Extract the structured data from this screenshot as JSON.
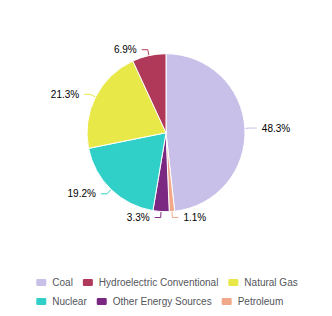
{
  "chart_data": {
    "type": "pie",
    "categories": [
      "Coal",
      "Petroleum",
      "Other Energy Sources",
      "Nuclear",
      "Natural Gas",
      "Hydroelectric Conventional"
    ],
    "values": [
      48.3,
      1.1,
      3.3,
      19.2,
      21.3,
      6.9
    ],
    "value_labels": [
      "48.3%",
      "1.1%",
      "3.3%",
      "19.2%",
      "21.3%",
      "6.9%"
    ],
    "colors": [
      "#c8c0e8",
      "#f0a888",
      "#7b2882",
      "#30d0c8",
      "#e8e848",
      "#b03858"
    ],
    "data_labels": true,
    "legend": "bottom"
  }
}
